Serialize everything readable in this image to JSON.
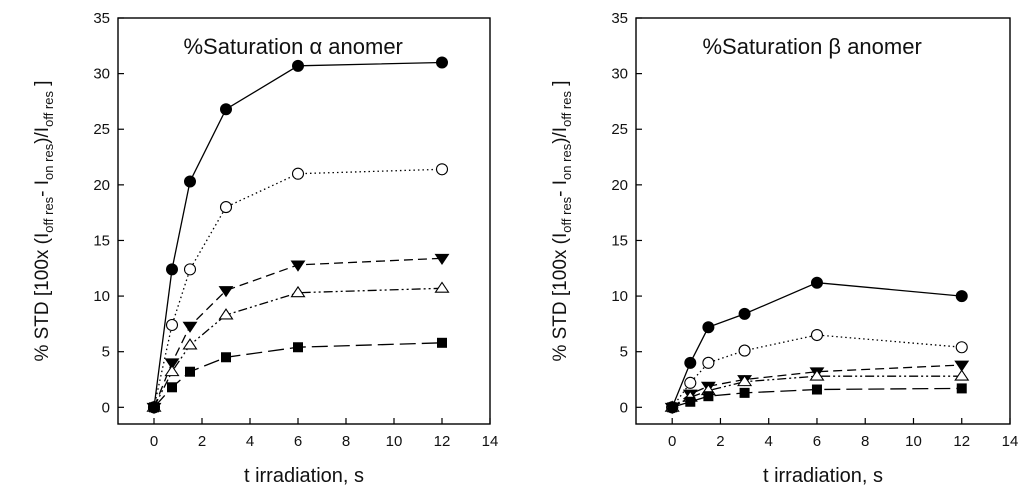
{
  "chart_data": [
    {
      "type": "line",
      "title": "%Saturation α anomer",
      "xlabel": "t irradiation, s",
      "ylabel": "% STD  [100x (I_off res - I_on res)/I_off res ]",
      "ylabel_parts": {
        "lead": "% STD  [100x (I",
        "sub1": "off res",
        "mid": "- I",
        "sub2": "on res",
        "mid2": ")/I",
        "sub3": "off res",
        "tail": " ]"
      },
      "xlim": [
        -1.5,
        14
      ],
      "ylim": [
        -1.5,
        35
      ],
      "xticks": [
        0,
        2,
        4,
        6,
        8,
        10,
        12,
        14
      ],
      "yticks": [
        0,
        5,
        10,
        15,
        20,
        25,
        30,
        35
      ],
      "grid": false,
      "legend": "none",
      "series": [
        {
          "marker": "filled-circle",
          "line": "solid",
          "color": "#000000",
          "x": [
            0,
            0.75,
            1.5,
            3,
            6,
            12
          ],
          "y": [
            0,
            12.4,
            20.3,
            26.8,
            30.7,
            31.0
          ]
        },
        {
          "marker": "open-circle",
          "line": "dotted",
          "color": "#000000",
          "x": [
            0,
            0.75,
            1.5,
            3,
            6,
            12
          ],
          "y": [
            0,
            7.4,
            12.4,
            18.0,
            21.0,
            21.4
          ]
        },
        {
          "marker": "filled-triangle-down",
          "line": "dashed",
          "color": "#000000",
          "x": [
            0,
            0.75,
            1.5,
            3,
            6,
            12
          ],
          "y": [
            0,
            4.0,
            7.3,
            10.5,
            12.8,
            13.4
          ]
        },
        {
          "marker": "open-triangle-up",
          "line": "dash-dot-dot",
          "color": "#000000",
          "x": [
            0,
            0.75,
            1.5,
            3,
            6,
            12
          ],
          "y": [
            0,
            3.2,
            5.6,
            8.3,
            10.3,
            10.7
          ]
        },
        {
          "marker": "filled-square",
          "line": "long-dash",
          "color": "#000000",
          "x": [
            0,
            0.75,
            1.5,
            3,
            6,
            12
          ],
          "y": [
            0,
            1.8,
            3.2,
            4.5,
            5.4,
            5.8
          ]
        }
      ]
    },
    {
      "type": "line",
      "title": "%Saturation β anomer",
      "xlabel": "t irradiation, s",
      "ylabel": "% STD  [100x (I_off res - I_on res)/I_off res ]",
      "ylabel_parts": {
        "lead": "% STD  [100x (I",
        "sub1": "off res",
        "mid": "- I",
        "sub2": "on res",
        "mid2": ")/I",
        "sub3": "off res",
        "tail": " ]"
      },
      "xlim": [
        -1.5,
        14
      ],
      "ylim": [
        -1.5,
        35
      ],
      "xticks": [
        0,
        2,
        4,
        6,
        8,
        10,
        12,
        14
      ],
      "yticks": [
        0,
        5,
        10,
        15,
        20,
        25,
        30,
        35
      ],
      "grid": false,
      "legend": "none",
      "series": [
        {
          "marker": "filled-circle",
          "line": "solid",
          "color": "#000000",
          "x": [
            0,
            0.75,
            1.5,
            3,
            6,
            12
          ],
          "y": [
            0,
            4.0,
            7.2,
            8.4,
            11.2,
            10.0
          ]
        },
        {
          "marker": "open-circle",
          "line": "dotted",
          "color": "#000000",
          "x": [
            0,
            0.75,
            1.5,
            3,
            6,
            12
          ],
          "y": [
            0,
            2.2,
            4.0,
            5.1,
            6.5,
            5.4
          ]
        },
        {
          "marker": "filled-triangle-down",
          "line": "dashed",
          "color": "#000000",
          "x": [
            0,
            0.75,
            1.5,
            3,
            6,
            12
          ],
          "y": [
            0,
            1.2,
            1.9,
            2.5,
            3.2,
            3.8
          ]
        },
        {
          "marker": "open-triangle-up",
          "line": "dash-dot-dot",
          "color": "#000000",
          "x": [
            0,
            0.75,
            1.5,
            3,
            6,
            12
          ],
          "y": [
            0,
            0.9,
            1.5,
            2.3,
            2.8,
            2.8
          ]
        },
        {
          "marker": "filled-square",
          "line": "long-dash",
          "color": "#000000",
          "x": [
            0,
            0.75,
            1.5,
            3,
            6,
            12
          ],
          "y": [
            0,
            0.5,
            1.0,
            1.3,
            1.6,
            1.7
          ]
        }
      ]
    }
  ]
}
